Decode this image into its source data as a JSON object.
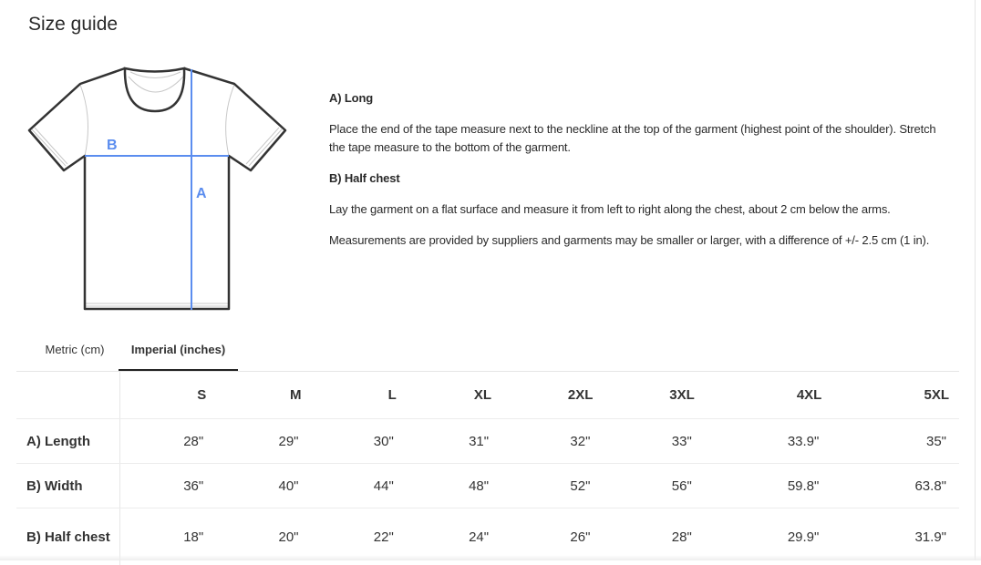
{
  "header": {
    "title": "Size guide"
  },
  "diagram": {
    "label_a": "A",
    "label_b": "B",
    "measure_color": "#5b8def"
  },
  "instructions": {
    "a_heading": "A) Long",
    "a_text": "Place the end of the tape measure next to the neckline at the top of the garment (highest point of the shoulder). Stretch the tape measure to the bottom of the garment.",
    "b_heading": "B) Half chest",
    "b_text": "Lay the garment on a flat surface and measure it from left to right along the chest, about 2 cm below the arms.",
    "note": "Measurements are provided by suppliers and garments may be smaller or larger, with a difference of +/- 2.5 cm (1 in)."
  },
  "tabs": [
    {
      "label": "Metric (cm)",
      "active": false
    },
    {
      "label": "Imperial (inches)",
      "active": true
    }
  ],
  "table": {
    "sizes": [
      "S",
      "M",
      "L",
      "XL",
      "2XL",
      "3XL",
      "4XL",
      "5XL"
    ],
    "rows": [
      {
        "label": "A) Length",
        "values": [
          "28\"",
          "29\"",
          "30\"",
          "31\"",
          "32\"",
          "33\"",
          "33.9\"",
          "35\""
        ]
      },
      {
        "label": "B) Width",
        "values": [
          "36\"",
          "40\"",
          "44\"",
          "48\"",
          "52\"",
          "56\"",
          "59.8\"",
          "63.8\""
        ]
      },
      {
        "label": "B) Half chest",
        "values": [
          "18\"",
          "20\"",
          "22\"",
          "24\"",
          "26\"",
          "28\"",
          "29.9\"",
          "31.9\""
        ]
      }
    ]
  }
}
